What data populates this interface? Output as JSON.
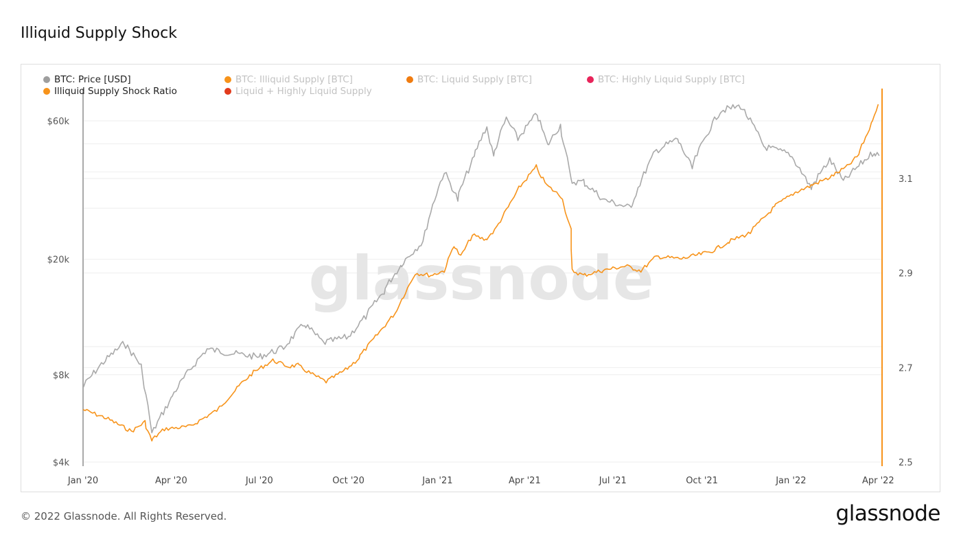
{
  "page": {
    "title": "Illiquid Supply Shock",
    "copyright": "© 2022 Glassnode. All Rights Reserved.",
    "logo_text": "glassnode",
    "watermark": "glassnode"
  },
  "legend": [
    {
      "label": "BTC: Price [USD]",
      "color": "#9e9e9e",
      "active": true
    },
    {
      "label": "BTC: Illiquid Supply [BTC]",
      "color": "#f7931a",
      "active": false
    },
    {
      "label": "BTC: Liquid Supply [BTC]",
      "color": "#f07c10",
      "active": false
    },
    {
      "label": "BTC: Highly Liquid Supply [BTC]",
      "color": "#e8245a",
      "active": false
    },
    {
      "label": "Illiquid Supply Shock Ratio",
      "color": "#f7931a",
      "active": true
    },
    {
      "label": "Liquid + Highly Liquid Supply",
      "color": "#e23a1c",
      "active": false
    }
  ],
  "chart_data": {
    "type": "line",
    "x_ticks": [
      "Jan '20",
      "Apr '20",
      "Jul '20",
      "Oct '20",
      "Jan '21",
      "Apr '21",
      "Jul '21",
      "Oct '21",
      "Jan '22",
      "Apr '22"
    ],
    "x_range": [
      "2020-01-01",
      "2022-04-05"
    ],
    "y_left": {
      "scale": "log",
      "range": [
        4000,
        80000
      ],
      "ticks": [
        "$4k",
        "$8k",
        "$20k",
        "$60k"
      ],
      "tick_values": [
        4000,
        8000,
        20000,
        60000
      ]
    },
    "y_right": {
      "scale": "linear",
      "range": [
        2.5,
        3.3
      ],
      "ticks": [
        "2.5",
        "2.7",
        "2.9",
        "3.1"
      ],
      "tick_values": [
        2.5,
        2.7,
        2.9,
        3.1
      ]
    },
    "grid": true,
    "legend_position": "top-left",
    "series": [
      {
        "name": "BTC: Price [USD]",
        "color": "#a9a9a9",
        "axis": "left",
        "points": [
          [
            "2020-01-01",
            7200
          ],
          [
            "2020-01-20",
            8700
          ],
          [
            "2020-02-13",
            10300
          ],
          [
            "2020-03-01",
            8600
          ],
          [
            "2020-03-12",
            5000
          ],
          [
            "2020-04-01",
            6600
          ],
          [
            "2020-05-08",
            9800
          ],
          [
            "2020-06-01",
            9500
          ],
          [
            "2020-07-01",
            9200
          ],
          [
            "2020-07-26",
            9900
          ],
          [
            "2020-08-17",
            12000
          ],
          [
            "2020-09-05",
            10300
          ],
          [
            "2020-10-01",
            10800
          ],
          [
            "2020-10-21",
            12900
          ],
          [
            "2020-11-07",
            15500
          ],
          [
            "2020-11-24",
            19000
          ],
          [
            "2020-12-17",
            23000
          ],
          [
            "2021-01-08",
            40000
          ],
          [
            "2021-01-22",
            32000
          ],
          [
            "2021-02-08",
            45000
          ],
          [
            "2021-02-21",
            57500
          ],
          [
            "2021-02-28",
            45000
          ],
          [
            "2021-03-13",
            61000
          ],
          [
            "2021-03-25",
            52000
          ],
          [
            "2021-04-14",
            63500
          ],
          [
            "2021-04-25",
            49000
          ],
          [
            "2021-05-08",
            58000
          ],
          [
            "2021-05-19",
            37000
          ],
          [
            "2021-06-01",
            37000
          ],
          [
            "2021-06-22",
            32000
          ],
          [
            "2021-07-20",
            30000
          ],
          [
            "2021-08-14",
            47000
          ],
          [
            "2021-09-06",
            52000
          ],
          [
            "2021-09-21",
            41000
          ],
          [
            "2021-10-20",
            65000
          ],
          [
            "2021-11-10",
            67500
          ],
          [
            "2021-12-04",
            49000
          ],
          [
            "2021-12-31",
            46000
          ],
          [
            "2022-01-22",
            35000
          ],
          [
            "2022-02-10",
            44000
          ],
          [
            "2022-02-24",
            37000
          ],
          [
            "2022-03-28",
            47000
          ],
          [
            "2022-04-02",
            45500
          ]
        ]
      },
      {
        "name": "Illiquid Supply Shock Ratio",
        "color": "#f7931a",
        "axis": "right",
        "points": [
          [
            "2020-01-01",
            2.611
          ],
          [
            "2020-01-25",
            2.593
          ],
          [
            "2020-02-20",
            2.565
          ],
          [
            "2020-03-05",
            2.585
          ],
          [
            "2020-03-12",
            2.545
          ],
          [
            "2020-03-25",
            2.57
          ],
          [
            "2020-04-20",
            2.575
          ],
          [
            "2020-05-20",
            2.612
          ],
          [
            "2020-06-10",
            2.66
          ],
          [
            "2020-06-25",
            2.69
          ],
          [
            "2020-07-15",
            2.715
          ],
          [
            "2020-07-31",
            2.702
          ],
          [
            "2020-08-10",
            2.705
          ],
          [
            "2020-08-25",
            2.685
          ],
          [
            "2020-09-08",
            2.67
          ],
          [
            "2020-09-28",
            2.695
          ],
          [
            "2020-10-12",
            2.72
          ],
          [
            "2020-10-29",
            2.765
          ],
          [
            "2020-11-20",
            2.82
          ],
          [
            "2020-12-09",
            2.9
          ],
          [
            "2020-12-25",
            2.895
          ],
          [
            "2021-01-08",
            2.905
          ],
          [
            "2021-01-18",
            2.96
          ],
          [
            "2021-01-25",
            2.935
          ],
          [
            "2021-02-06",
            2.98
          ],
          [
            "2021-02-20",
            2.97
          ],
          [
            "2021-03-01",
            2.99
          ],
          [
            "2021-03-25",
            3.075
          ],
          [
            "2021-04-13",
            3.125
          ],
          [
            "2021-04-24",
            3.085
          ],
          [
            "2021-05-10",
            3.06
          ],
          [
            "2021-05-19",
            2.99
          ],
          [
            "2021-05-20",
            2.905
          ],
          [
            "2021-06-01",
            2.895
          ],
          [
            "2021-06-20",
            2.905
          ],
          [
            "2021-07-15",
            2.915
          ],
          [
            "2021-07-30",
            2.905
          ],
          [
            "2021-08-15",
            2.935
          ],
          [
            "2021-09-10",
            2.93
          ],
          [
            "2021-10-10",
            2.945
          ],
          [
            "2021-10-28",
            2.965
          ],
          [
            "2021-11-20",
            2.985
          ],
          [
            "2021-12-15",
            3.04
          ],
          [
            "2022-01-05",
            3.07
          ],
          [
            "2022-01-22",
            3.085
          ],
          [
            "2022-02-08",
            3.1
          ],
          [
            "2022-02-28",
            3.125
          ],
          [
            "2022-03-12",
            3.15
          ],
          [
            "2022-03-25",
            3.215
          ],
          [
            "2022-04-01",
            3.257
          ]
        ]
      }
    ]
  }
}
